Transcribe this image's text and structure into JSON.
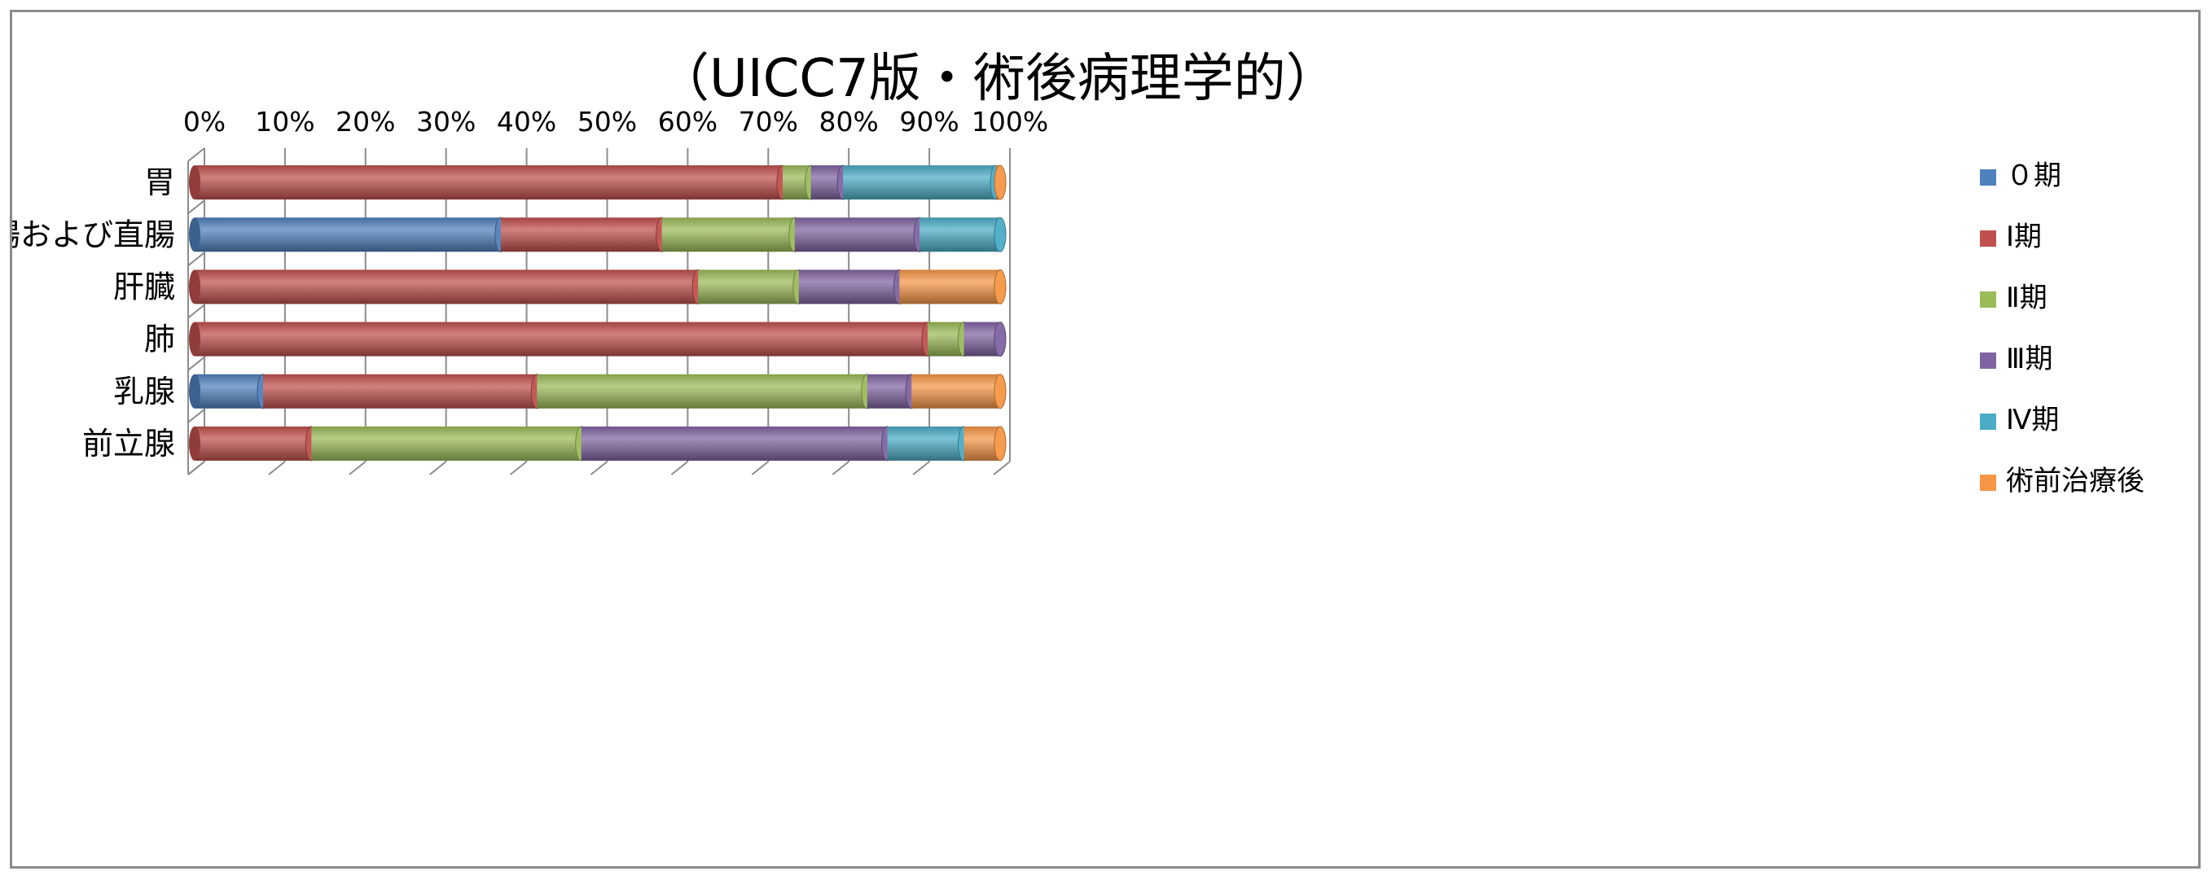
{
  "chart_data": {
    "type": "bar",
    "orientation": "horizontal",
    "stacked": "percent",
    "style": "3d-cylinder",
    "title": "（UICC7版・術後病理学的）",
    "x_tick_labels": [
      "0%",
      "10%",
      "20%",
      "30%",
      "40%",
      "50%",
      "60%",
      "70%",
      "80%",
      "90%",
      "100%"
    ],
    "xlim": [
      0,
      100
    ],
    "x_axis_position": "top",
    "grid": true,
    "legend_position": "right",
    "categories": [
      "胃",
      "結腸および直腸",
      "肝臓",
      "肺",
      "乳腺",
      "前立腺"
    ],
    "series": [
      {
        "name": "０期",
        "color": "#4f81bd",
        "values": [
          0,
          38,
          0,
          0,
          8.5,
          0
        ]
      },
      {
        "name": "Ⅰ期",
        "color": "#c0504d",
        "values": [
          73,
          20,
          62.5,
          91,
          34,
          14.5
        ]
      },
      {
        "name": "Ⅱ期",
        "color": "#9bbb59",
        "values": [
          3.5,
          16.5,
          12.5,
          4.5,
          41,
          33.5
        ]
      },
      {
        "name": "Ⅲ期",
        "color": "#8064a2",
        "values": [
          4,
          15.5,
          12.5,
          4.5,
          5.5,
          38
        ]
      },
      {
        "name": "Ⅳ期",
        "color": "#4bacc6",
        "values": [
          19,
          10,
          0,
          0,
          0,
          9.5
        ]
      },
      {
        "name": "術前治療後",
        "color": "#f79646",
        "values": [
          0.5,
          0,
          12.5,
          0,
          11,
          4.5
        ]
      }
    ]
  }
}
